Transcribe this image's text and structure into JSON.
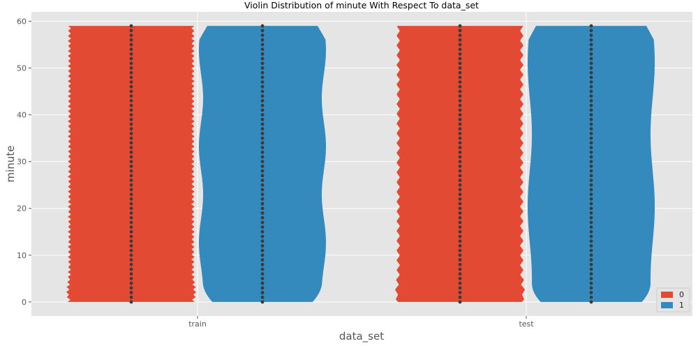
{
  "chart_data": {
    "type": "violin",
    "title": "Violin Distribution of minute With Respect To data_set",
    "xlabel": "data_set",
    "ylabel": "minute",
    "categories": [
      "train",
      "test"
    ],
    "ylim": [
      -3,
      62
    ],
    "yticks": [
      0,
      10,
      20,
      30,
      40,
      50,
      60
    ],
    "grid": true,
    "legend_position": "bottom-right",
    "inner": "point",
    "points_y": [
      0,
      1,
      2,
      3,
      4,
      5,
      6,
      7,
      8,
      9,
      10,
      11,
      12,
      13,
      14,
      15,
      16,
      17,
      18,
      19,
      20,
      21,
      22,
      23,
      24,
      25,
      26,
      27,
      28,
      29,
      30,
      31,
      32,
      33,
      34,
      35,
      36,
      37,
      38,
      39,
      40,
      41,
      42,
      43,
      44,
      45,
      46,
      47,
      48,
      49,
      50,
      51,
      52,
      53,
      54,
      55,
      56,
      57,
      58,
      59
    ],
    "series": [
      {
        "name": "0",
        "color": "#e24a33"
      },
      {
        "name": "1",
        "color": "#348abd"
      }
    ]
  }
}
